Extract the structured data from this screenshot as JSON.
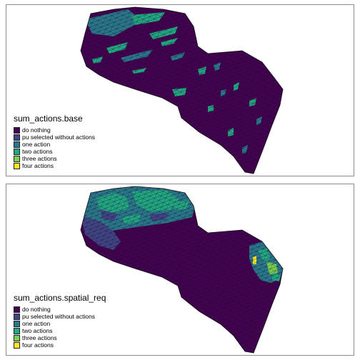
{
  "maps": [
    {
      "title": "sum_actions.base",
      "legend": [
        {
          "label": "do nothing",
          "color": "#440154"
        },
        {
          "label": "pu selected without actions",
          "color": "#414487"
        },
        {
          "label": "one action",
          "color": "#2A788E"
        },
        {
          "label": "two actions",
          "color": "#22A884"
        },
        {
          "label": "three actions",
          "color": "#7AD151"
        },
        {
          "label": "four actions",
          "color": "#FDE725"
        }
      ]
    },
    {
      "title": "sum_actions.spatial_req",
      "legend": [
        {
          "label": "do nothing",
          "color": "#440154"
        },
        {
          "label": "pu selected without actions",
          "color": "#414487"
        },
        {
          "label": "one action",
          "color": "#2A788E"
        },
        {
          "label": "two actions",
          "color": "#22A884"
        },
        {
          "label": "three actions",
          "color": "#7AD151"
        },
        {
          "label": "four actions",
          "color": "#FDE725"
        }
      ]
    }
  ]
}
